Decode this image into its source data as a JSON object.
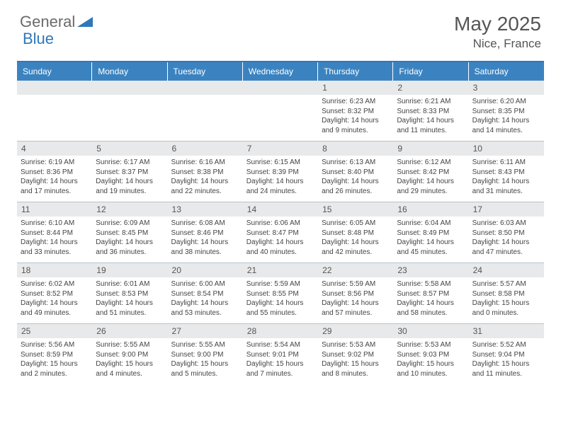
{
  "logo": {
    "word1": "General",
    "word2": "Blue"
  },
  "title": {
    "month": "May 2025",
    "location": "Nice, France"
  },
  "colors": {
    "header_bg": "#3b83c0",
    "header_text": "#ffffff",
    "numrow_bg": "#e8e9ea",
    "border": "#b8c2cc",
    "accent": "#2f77b8",
    "body_text": "#444444"
  },
  "day_labels": [
    "Sunday",
    "Monday",
    "Tuesday",
    "Wednesday",
    "Thursday",
    "Friday",
    "Saturday"
  ],
  "weeks": [
    {
      "nums": [
        "",
        "",
        "",
        "",
        "1",
        "2",
        "3"
      ],
      "cells": [
        null,
        null,
        null,
        null,
        {
          "sunrise": "Sunrise: 6:23 AM",
          "sunset": "Sunset: 8:32 PM",
          "day1": "Daylight: 14 hours",
          "day2": "and 9 minutes."
        },
        {
          "sunrise": "Sunrise: 6:21 AM",
          "sunset": "Sunset: 8:33 PM",
          "day1": "Daylight: 14 hours",
          "day2": "and 11 minutes."
        },
        {
          "sunrise": "Sunrise: 6:20 AM",
          "sunset": "Sunset: 8:35 PM",
          "day1": "Daylight: 14 hours",
          "day2": "and 14 minutes."
        }
      ]
    },
    {
      "nums": [
        "4",
        "5",
        "6",
        "7",
        "8",
        "9",
        "10"
      ],
      "cells": [
        {
          "sunrise": "Sunrise: 6:19 AM",
          "sunset": "Sunset: 8:36 PM",
          "day1": "Daylight: 14 hours",
          "day2": "and 17 minutes."
        },
        {
          "sunrise": "Sunrise: 6:17 AM",
          "sunset": "Sunset: 8:37 PM",
          "day1": "Daylight: 14 hours",
          "day2": "and 19 minutes."
        },
        {
          "sunrise": "Sunrise: 6:16 AM",
          "sunset": "Sunset: 8:38 PM",
          "day1": "Daylight: 14 hours",
          "day2": "and 22 minutes."
        },
        {
          "sunrise": "Sunrise: 6:15 AM",
          "sunset": "Sunset: 8:39 PM",
          "day1": "Daylight: 14 hours",
          "day2": "and 24 minutes."
        },
        {
          "sunrise": "Sunrise: 6:13 AM",
          "sunset": "Sunset: 8:40 PM",
          "day1": "Daylight: 14 hours",
          "day2": "and 26 minutes."
        },
        {
          "sunrise": "Sunrise: 6:12 AM",
          "sunset": "Sunset: 8:42 PM",
          "day1": "Daylight: 14 hours",
          "day2": "and 29 minutes."
        },
        {
          "sunrise": "Sunrise: 6:11 AM",
          "sunset": "Sunset: 8:43 PM",
          "day1": "Daylight: 14 hours",
          "day2": "and 31 minutes."
        }
      ]
    },
    {
      "nums": [
        "11",
        "12",
        "13",
        "14",
        "15",
        "16",
        "17"
      ],
      "cells": [
        {
          "sunrise": "Sunrise: 6:10 AM",
          "sunset": "Sunset: 8:44 PM",
          "day1": "Daylight: 14 hours",
          "day2": "and 33 minutes."
        },
        {
          "sunrise": "Sunrise: 6:09 AM",
          "sunset": "Sunset: 8:45 PM",
          "day1": "Daylight: 14 hours",
          "day2": "and 36 minutes."
        },
        {
          "sunrise": "Sunrise: 6:08 AM",
          "sunset": "Sunset: 8:46 PM",
          "day1": "Daylight: 14 hours",
          "day2": "and 38 minutes."
        },
        {
          "sunrise": "Sunrise: 6:06 AM",
          "sunset": "Sunset: 8:47 PM",
          "day1": "Daylight: 14 hours",
          "day2": "and 40 minutes."
        },
        {
          "sunrise": "Sunrise: 6:05 AM",
          "sunset": "Sunset: 8:48 PM",
          "day1": "Daylight: 14 hours",
          "day2": "and 42 minutes."
        },
        {
          "sunrise": "Sunrise: 6:04 AM",
          "sunset": "Sunset: 8:49 PM",
          "day1": "Daylight: 14 hours",
          "day2": "and 45 minutes."
        },
        {
          "sunrise": "Sunrise: 6:03 AM",
          "sunset": "Sunset: 8:50 PM",
          "day1": "Daylight: 14 hours",
          "day2": "and 47 minutes."
        }
      ]
    },
    {
      "nums": [
        "18",
        "19",
        "20",
        "21",
        "22",
        "23",
        "24"
      ],
      "cells": [
        {
          "sunrise": "Sunrise: 6:02 AM",
          "sunset": "Sunset: 8:52 PM",
          "day1": "Daylight: 14 hours",
          "day2": "and 49 minutes."
        },
        {
          "sunrise": "Sunrise: 6:01 AM",
          "sunset": "Sunset: 8:53 PM",
          "day1": "Daylight: 14 hours",
          "day2": "and 51 minutes."
        },
        {
          "sunrise": "Sunrise: 6:00 AM",
          "sunset": "Sunset: 8:54 PM",
          "day1": "Daylight: 14 hours",
          "day2": "and 53 minutes."
        },
        {
          "sunrise": "Sunrise: 5:59 AM",
          "sunset": "Sunset: 8:55 PM",
          "day1": "Daylight: 14 hours",
          "day2": "and 55 minutes."
        },
        {
          "sunrise": "Sunrise: 5:59 AM",
          "sunset": "Sunset: 8:56 PM",
          "day1": "Daylight: 14 hours",
          "day2": "and 57 minutes."
        },
        {
          "sunrise": "Sunrise: 5:58 AM",
          "sunset": "Sunset: 8:57 PM",
          "day1": "Daylight: 14 hours",
          "day2": "and 58 minutes."
        },
        {
          "sunrise": "Sunrise: 5:57 AM",
          "sunset": "Sunset: 8:58 PM",
          "day1": "Daylight: 15 hours",
          "day2": "and 0 minutes."
        }
      ]
    },
    {
      "nums": [
        "25",
        "26",
        "27",
        "28",
        "29",
        "30",
        "31"
      ],
      "cells": [
        {
          "sunrise": "Sunrise: 5:56 AM",
          "sunset": "Sunset: 8:59 PM",
          "day1": "Daylight: 15 hours",
          "day2": "and 2 minutes."
        },
        {
          "sunrise": "Sunrise: 5:55 AM",
          "sunset": "Sunset: 9:00 PM",
          "day1": "Daylight: 15 hours",
          "day2": "and 4 minutes."
        },
        {
          "sunrise": "Sunrise: 5:55 AM",
          "sunset": "Sunset: 9:00 PM",
          "day1": "Daylight: 15 hours",
          "day2": "and 5 minutes."
        },
        {
          "sunrise": "Sunrise: 5:54 AM",
          "sunset": "Sunset: 9:01 PM",
          "day1": "Daylight: 15 hours",
          "day2": "and 7 minutes."
        },
        {
          "sunrise": "Sunrise: 5:53 AM",
          "sunset": "Sunset: 9:02 PM",
          "day1": "Daylight: 15 hours",
          "day2": "and 8 minutes."
        },
        {
          "sunrise": "Sunrise: 5:53 AM",
          "sunset": "Sunset: 9:03 PM",
          "day1": "Daylight: 15 hours",
          "day2": "and 10 minutes."
        },
        {
          "sunrise": "Sunrise: 5:52 AM",
          "sunset": "Sunset: 9:04 PM",
          "day1": "Daylight: 15 hours",
          "day2": "and 11 minutes."
        }
      ]
    }
  ]
}
